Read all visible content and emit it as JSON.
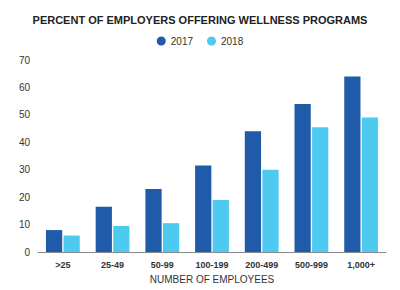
{
  "chart_data": {
    "type": "bar",
    "title": "PERCENT OF EMPLOYERS OFFERING WELLNESS PROGRAMS",
    "x_label": "NUMBER OF EMPLOYEES",
    "categories": [
      ">25",
      "25-49",
      "50-99",
      "100-199",
      "200-499",
      "500-999",
      "1,000+"
    ],
    "series": [
      {
        "name": "2017",
        "color": "#1f5ba8",
        "values": [
          8,
          16.5,
          23,
          31.5,
          44,
          54,
          64
        ]
      },
      {
        "name": "2018",
        "color": "#4ec9f0",
        "values": [
          6,
          9.5,
          10.5,
          19,
          30,
          45.5,
          49
        ]
      }
    ],
    "ylim": [
      0,
      70
    ],
    "yticks": [
      0,
      10,
      20,
      30,
      40,
      50,
      60,
      70
    ],
    "grid": false,
    "legend": "top"
  }
}
